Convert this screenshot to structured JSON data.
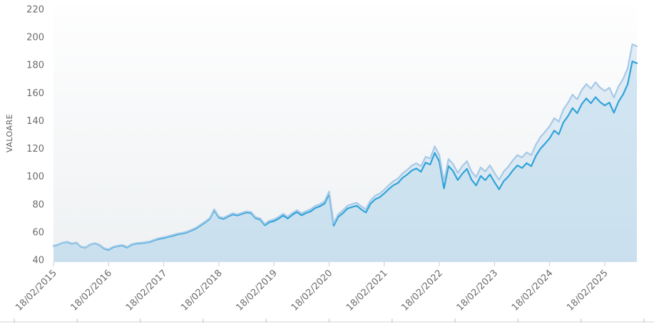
{
  "chart": {
    "y_axis_title": "VALOARE",
    "colors": {
      "series_light": "#a6c9e8",
      "series_dark": "#2fa3d9",
      "fill_light": "rgba(166,201,232,0.30)",
      "fill_dark": "rgba(47,163,217,0.10)",
      "axis_text": "#6b6b6b",
      "tick_mark": "#cccccc",
      "plot_bg_top": "#fefefe",
      "plot_bg_bottom": "#eef1f3",
      "ruler_line": "#dcdcdc",
      "ruler_tick": "#c8c8c8"
    }
  },
  "chart_data": {
    "type": "line",
    "title": "",
    "xlabel": "",
    "ylabel": "VALOARE",
    "x_unit": "month",
    "x_start": "2015-02-18",
    "x_end": "2025-09-18",
    "ylim": [
      40,
      220
    ],
    "y_ticks": [
      220,
      200,
      180,
      160,
      140,
      120,
      100,
      80,
      60,
      40
    ],
    "x_tick_labels": [
      "18/02/2015",
      "18/02/2016",
      "18/02/2017",
      "18/02/2018",
      "18/02/2019",
      "18/02/2020",
      "18/02/2021",
      "18/02/2022",
      "18/02/2023",
      "18/02/2024",
      "18/02/2025"
    ],
    "x_tick_month_index": [
      0,
      12,
      24,
      36,
      48,
      60,
      72,
      84,
      96,
      108,
      120
    ],
    "grid": false,
    "legend": "none",
    "series": [
      {
        "name": "series-light",
        "color": "#a6c9e8",
        "values": [
          50.2,
          51.1,
          52.5,
          53.1,
          51.8,
          52.6,
          49.5,
          49.1,
          51.2,
          52.1,
          51.0,
          48.5,
          47.6,
          49.5,
          50.3,
          50.8,
          49.3,
          51.3,
          52.1,
          52.3,
          52.8,
          53.3,
          54.6,
          55.7,
          56.3,
          57.1,
          58.0,
          58.9,
          59.5,
          60.3,
          61.6,
          63.1,
          65.3,
          67.5,
          70.0,
          76.4,
          71.1,
          70.2,
          71.9,
          73.5,
          72.7,
          73.8,
          74.9,
          74.4,
          70.7,
          69.8,
          65.8,
          68.2,
          69.1,
          70.9,
          73.2,
          71.0,
          73.7,
          75.7,
          73.4,
          75.1,
          76.4,
          78.8,
          80.0,
          82.1,
          89.1,
          66.4,
          72.8,
          75.6,
          78.9,
          80.1,
          81.0,
          78.5,
          76.3,
          82.7,
          86.0,
          87.6,
          90.4,
          93.7,
          96.5,
          98.4,
          102.2,
          104.7,
          107.7,
          109.4,
          107.2,
          114.0,
          112.9,
          121.5,
          115.3,
          96.1,
          112.4,
          108.8,
          102.5,
          107.3,
          111.0,
          103.5,
          99.5,
          106.5,
          103.5,
          107.9,
          102.5,
          97.5,
          103.4,
          107.0,
          111.5,
          115.3,
          113.6,
          117.2,
          115.2,
          122.7,
          128.2,
          132.0,
          136.0,
          141.8,
          139.3,
          148.0,
          152.8,
          158.7,
          155.3,
          162.0,
          166.3,
          163.0,
          167.6,
          163.7,
          161.4,
          163.7,
          156.5,
          164.5,
          170.0,
          177.5,
          194.9,
          193.4
        ]
      },
      {
        "name": "series-dark",
        "color": "#2fa3d9",
        "values": [
          50.0,
          50.9,
          52.3,
          52.9,
          51.6,
          52.4,
          49.3,
          48.9,
          51.0,
          51.9,
          50.8,
          48.1,
          47.2,
          49.1,
          49.9,
          50.4,
          48.9,
          50.9,
          51.7,
          51.9,
          52.4,
          52.9,
          54.2,
          55.1,
          55.7,
          56.5,
          57.4,
          58.3,
          58.9,
          59.7,
          61.0,
          62.5,
          64.7,
          66.9,
          69.4,
          75.6,
          70.3,
          69.4,
          71.1,
          72.7,
          71.9,
          73.0,
          74.1,
          73.6,
          69.9,
          69.0,
          64.9,
          67.0,
          67.9,
          69.6,
          71.9,
          69.7,
          72.4,
          74.3,
          72.0,
          73.7,
          74.9,
          77.3,
          78.5,
          80.4,
          87.4,
          64.6,
          70.9,
          73.6,
          76.9,
          78.0,
          78.9,
          76.3,
          74.0,
          80.3,
          83.5,
          85.0,
          87.7,
          90.9,
          93.6,
          95.3,
          99.0,
          101.3,
          104.2,
          105.7,
          103.3,
          109.9,
          108.5,
          116.9,
          110.6,
          91.3,
          107.4,
          103.7,
          97.3,
          101.9,
          105.4,
          97.7,
          93.5,
          100.3,
          97.2,
          101.4,
          95.9,
          90.7,
          96.5,
          99.9,
          104.3,
          107.9,
          106.0,
          109.5,
          107.3,
          114.7,
          119.9,
          123.5,
          127.3,
          132.9,
          130.2,
          138.7,
          143.3,
          149.0,
          145.4,
          151.9,
          156.0,
          152.5,
          156.9,
          153.3,
          150.9,
          153.0,
          145.7,
          153.6,
          158.9,
          166.2,
          182.6,
          181.2
        ]
      }
    ]
  }
}
